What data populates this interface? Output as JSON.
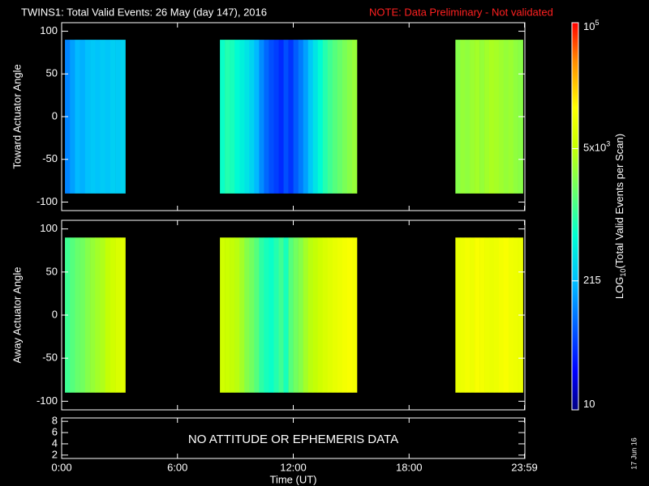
{
  "title": "TWINS1: Total Valid Events: 26 May (day 147), 2016",
  "note": "NOTE: Data Preliminary - Not validated",
  "date_stamp": "17 Jun 16",
  "colorbar": {
    "label_main": "LOG",
    "label_sub": "10",
    "label_rest": "(Total Valid Events per Scan)",
    "lim": [
      10,
      100000
    ],
    "log": true,
    "ticks": [
      10,
      215,
      {
        "value": 5000,
        "label": "5x10",
        "exponent": "3"
      },
      {
        "value": 100000,
        "label": "10",
        "exponent": "5"
      }
    ]
  },
  "chart_data": [
    {
      "type": "heatmap",
      "ylabel": "Toward Actuator Angle",
      "xlim": [
        0,
        24
      ],
      "xticks": [
        {
          "value": 0,
          "label": "0:00"
        },
        {
          "value": 6,
          "label": "6:00"
        },
        {
          "value": 12,
          "label": "12:00"
        },
        {
          "value": 18,
          "label": "18:00"
        },
        {
          "value": 23.98,
          "label": "23:59"
        }
      ],
      "ylim": [
        -110,
        110
      ],
      "yticks": [
        -100,
        -50,
        0,
        50,
        100
      ],
      "angle_range": [
        -90,
        90
      ],
      "blocks": [
        {
          "start": 0.17,
          "end": 3.3,
          "values": [
            110,
            150,
            200,
            180,
            220,
            250,
            230,
            260,
            240,
            280,
            260,
            300
          ]
        },
        {
          "start": 8.2,
          "end": 15.3,
          "values": [
            700,
            900,
            800,
            600,
            500,
            400,
            300,
            200,
            120,
            80,
            60,
            50,
            40,
            60,
            45,
            70,
            100,
            150,
            250,
            400,
            600,
            900,
            1200,
            1500,
            1800,
            2200,
            2600,
            3000
          ]
        },
        {
          "start": 20.4,
          "end": 23.9,
          "values": [
            2500,
            3000,
            2800,
            3200,
            3500,
            3000,
            3400,
            3800,
            3600,
            3300,
            3000,
            3200,
            2800,
            2600
          ]
        }
      ]
    },
    {
      "type": "heatmap",
      "ylabel": "Away Actuator Angle",
      "xlim": [
        0,
        24
      ],
      "xticks": [
        {
          "value": 0,
          "label": "0:00"
        },
        {
          "value": 6,
          "label": "6:00"
        },
        {
          "value": 12,
          "label": "12:00"
        },
        {
          "value": 18,
          "label": "18:00"
        },
        {
          "value": 23.98,
          "label": "23:59"
        }
      ],
      "ylim": [
        -110,
        110
      ],
      "yticks": [
        -100,
        -50,
        0,
        50,
        100
      ],
      "angle_range": [
        -90,
        90
      ],
      "blocks": [
        {
          "start": 0.17,
          "end": 3.3,
          "values": [
            1200,
            1500,
            1800,
            2000,
            2500,
            3000,
            3500,
            4000,
            5000,
            6000,
            7000,
            8000
          ]
        },
        {
          "start": 8.2,
          "end": 15.3,
          "values": [
            6000,
            5500,
            5000,
            4500,
            3500,
            2500,
            2000,
            1500,
            1000,
            800,
            700,
            900,
            1200,
            800,
            1500,
            2000,
            2500,
            3500,
            4500,
            5000,
            6000,
            7000,
            8000,
            9000,
            10000,
            11000,
            12000,
            11000
          ]
        },
        {
          "start": 20.4,
          "end": 23.9,
          "values": [
            9000,
            10000,
            11000,
            10000,
            12000,
            11000,
            10000,
            9500,
            10000,
            11000,
            12000,
            10500,
            10000,
            9500
          ]
        }
      ]
    },
    {
      "type": "text_panel",
      "text": "NO ATTITUDE OR EPHEMERIS DATA",
      "xlabel": "Time (UT)",
      "xlim": [
        0,
        24
      ],
      "xticks": [
        {
          "value": 0,
          "label": "0:00"
        },
        {
          "value": 6,
          "label": "6:00"
        },
        {
          "value": 12,
          "label": "12:00"
        },
        {
          "value": 18,
          "label": "18:00"
        },
        {
          "value": 23.98,
          "label": "23:59"
        }
      ],
      "ylim": [
        1.4,
        8.6
      ],
      "yticks": [
        2,
        4,
        6,
        8
      ]
    }
  ]
}
